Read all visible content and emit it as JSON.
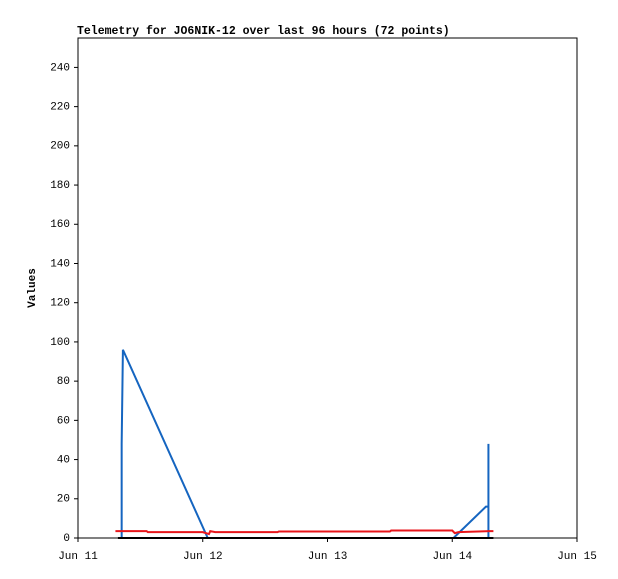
{
  "chart_data": {
    "type": "line",
    "title": "Telemetry for JO6NIK-12 over last 96 hours (72 points)",
    "y_label": "Values",
    "xlim": [
      0,
      4
    ],
    "xticks": [
      {
        "value": 0,
        "label": "Jun 11"
      },
      {
        "value": 1,
        "label": "Jun 12"
      },
      {
        "value": 2,
        "label": "Jun 13"
      },
      {
        "value": 3,
        "label": "Jun 14"
      },
      {
        "value": 4,
        "label": "Jun 15"
      }
    ],
    "ylim": [
      0,
      255
    ],
    "yticks": [
      0,
      20,
      40,
      60,
      80,
      100,
      120,
      140,
      160,
      180,
      200,
      220,
      240
    ],
    "series": [
      {
        "color": "#1565c0",
        "x": [
          0.35,
          0.35,
          0.36,
          1.04,
          3.01,
          3.27,
          3.29,
          3.29,
          3.29
        ],
        "values": [
          0,
          48,
          96,
          0,
          0,
          16,
          16,
          48,
          0
        ]
      },
      {
        "color": "#e8161b",
        "x": [
          0.3,
          0.55,
          0.56,
          1.0,
          1.05,
          1.06,
          1.1,
          1.6,
          1.61,
          2.5,
          2.51,
          3.0,
          3.02,
          3.05,
          3.3,
          3.33
        ],
        "values": [
          3.5,
          3.5,
          3,
          3,
          2,
          3.5,
          3,
          3,
          3.3,
          3.3,
          3.8,
          3.8,
          2.5,
          3,
          3.5,
          3.5
        ]
      },
      {
        "color": "#000000",
        "x": [
          0.32,
          3.33
        ],
        "values": [
          0,
          0
        ]
      }
    ]
  }
}
